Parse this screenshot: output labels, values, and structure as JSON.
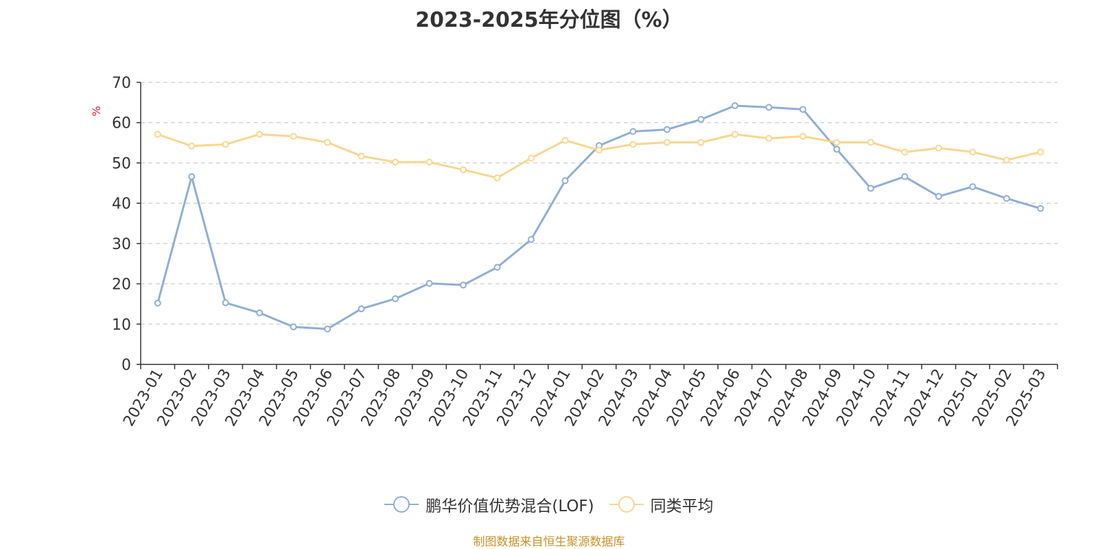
{
  "chart_data": {
    "type": "line",
    "title": "2023-2025年分位图（%）",
    "ylabel": "%",
    "xlabel": "",
    "ylim": [
      0,
      70
    ],
    "yticks": [
      0,
      10,
      20,
      30,
      40,
      50,
      60,
      70
    ],
    "grid": true,
    "legend_position": "bottom",
    "categories": [
      "2023-01",
      "2023-02",
      "2023-03",
      "2023-04",
      "2023-05",
      "2023-06",
      "2023-07",
      "2023-08",
      "2023-09",
      "2023-10",
      "2023-11",
      "2023-12",
      "2024-01",
      "2024-02",
      "2024-03",
      "2024-04",
      "2024-05",
      "2024-06",
      "2024-07",
      "2024-08",
      "2024-09",
      "2024-10",
      "2024-11",
      "2024-12",
      "2025-01",
      "2025-02",
      "2025-03"
    ],
    "series": [
      {
        "name": "鹏华价值优势混合(LOF)",
        "color": "#8eaed8",
        "values": [
          15.2,
          46.6,
          15.3,
          12.8,
          9.3,
          8.8,
          13.8,
          16.3,
          20.1,
          19.7,
          24.1,
          31.0,
          45.6,
          54.3,
          57.8,
          58.3,
          60.8,
          64.2,
          63.8,
          63.3,
          53.4,
          43.7,
          46.6,
          41.7,
          44.1,
          41.2,
          38.7
        ]
      },
      {
        "name": "同类平均",
        "color": "#fbd58d",
        "values": [
          57.1,
          54.2,
          54.6,
          57.1,
          56.6,
          55.1,
          51.7,
          50.2,
          50.2,
          48.3,
          46.3,
          51.2,
          55.6,
          53.2,
          54.6,
          55.1,
          55.1,
          57.1,
          56.1,
          56.6,
          55.1,
          55.1,
          52.7,
          53.7,
          52.7,
          50.7,
          52.7
        ]
      }
    ]
  },
  "footer": {
    "source": "制图数据来自恒生聚源数据库"
  }
}
